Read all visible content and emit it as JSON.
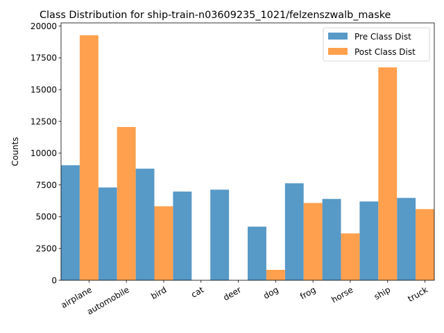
{
  "chart_data": {
    "type": "bar",
    "title": "Class Distribution for ship-train-n03609235_1021/felzenszwalb_maske",
    "xlabel": "",
    "ylabel": "Counts",
    "ylim": [
      0,
      20250
    ],
    "yticks": [
      0,
      2500,
      5000,
      7500,
      10000,
      12500,
      15000,
      17500,
      20000
    ],
    "ytick_labels": [
      "0",
      "2500",
      "5000",
      "7500",
      "10000",
      "12500",
      "15000",
      "17500",
      "20000"
    ],
    "categories": [
      "airplane",
      "automobile",
      "bird",
      "cat",
      "deer",
      "dog",
      "frog",
      "horse",
      "ship",
      "truck"
    ],
    "series": [
      {
        "name": "Pre Class Dist",
        "color": "#5799c7",
        "values": [
          9050,
          7300,
          8780,
          6980,
          7130,
          4220,
          7630,
          6400,
          6200,
          6480
        ]
      },
      {
        "name": "Post Class Dist",
        "color": "#ffa04e",
        "values": [
          19280,
          12060,
          5820,
          0,
          0,
          820,
          6080,
          3690,
          16750,
          5600
        ]
      }
    ],
    "legend_position": "top-right",
    "grid": false
  }
}
